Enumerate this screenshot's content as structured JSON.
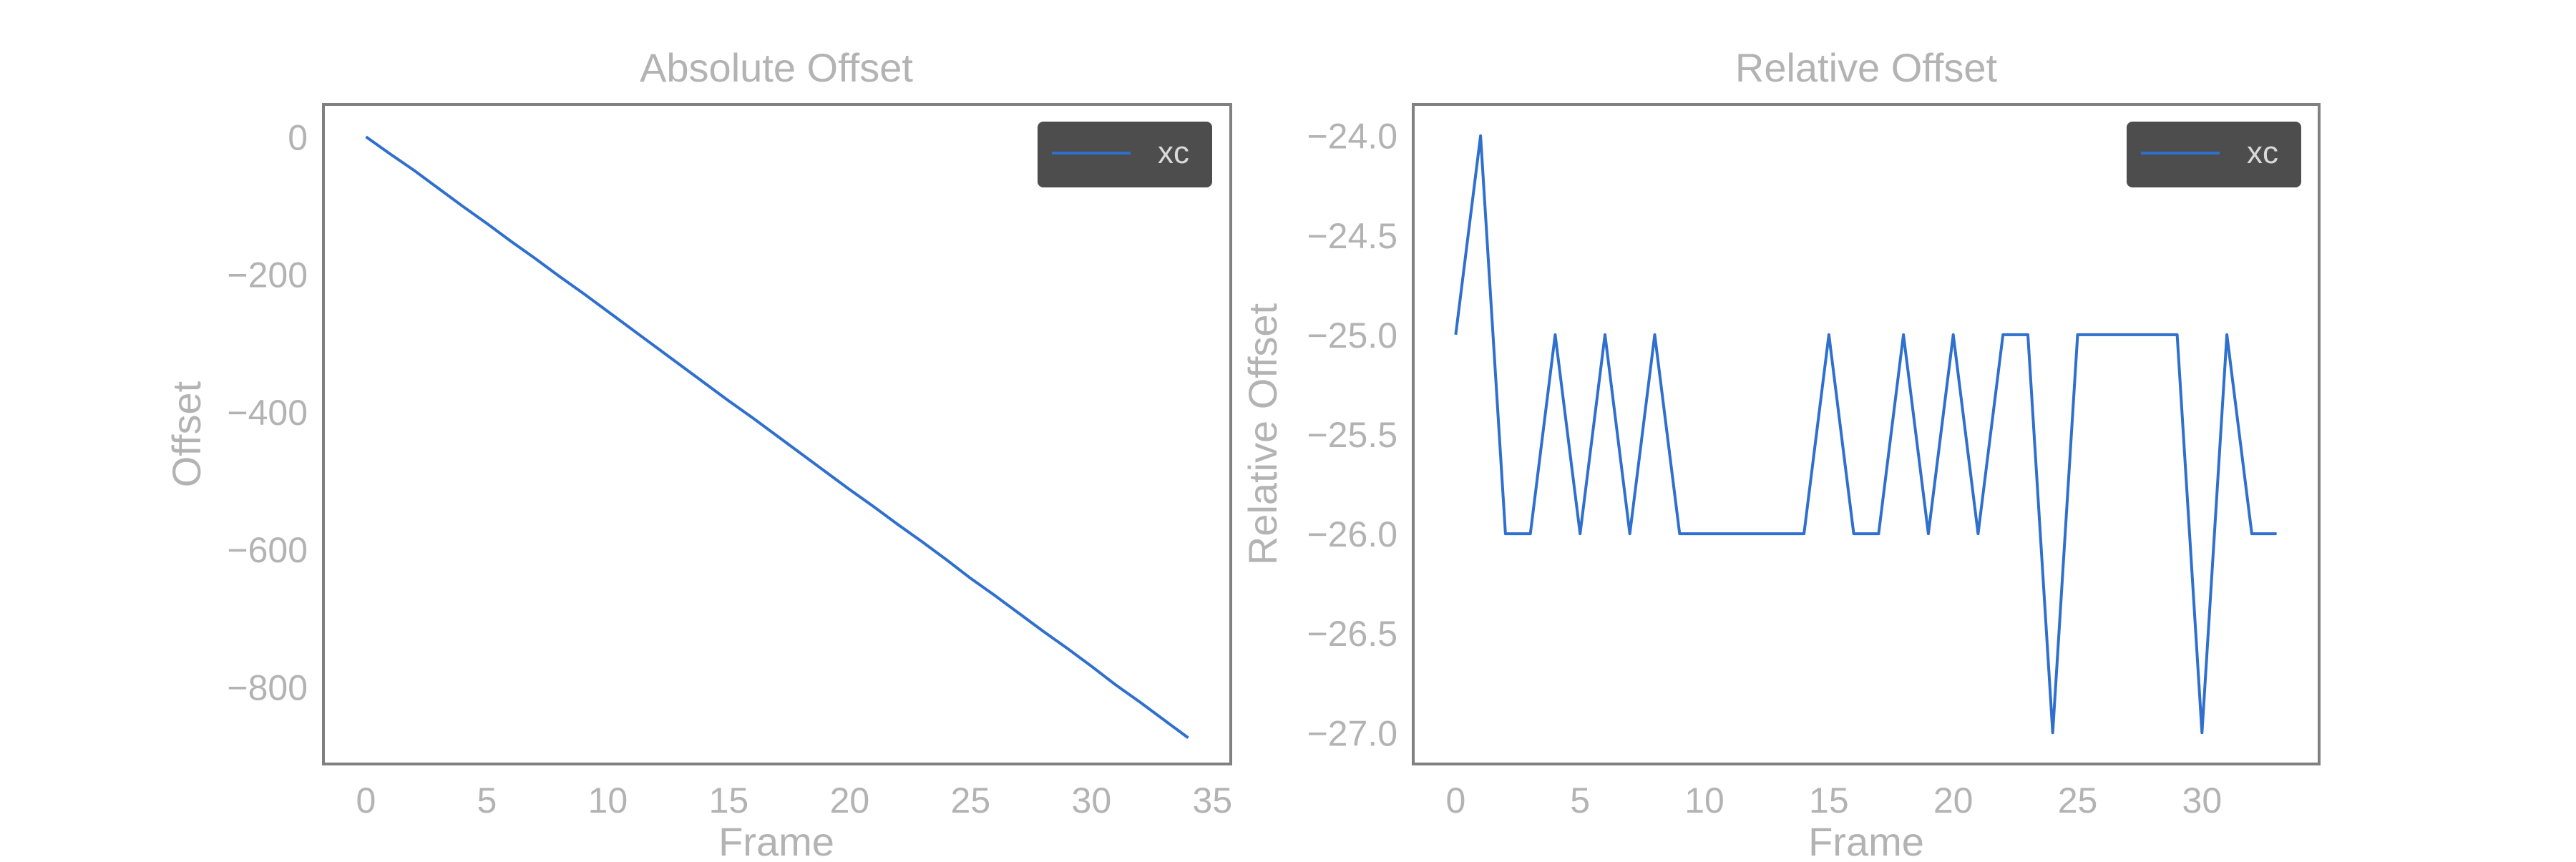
{
  "chart_data": [
    {
      "type": "line",
      "title": "Absolute Offset",
      "xlabel": "Frame",
      "ylabel": "Offset",
      "xlim": [
        -1.7,
        35.7
      ],
      "ylim": [
        -910,
        45
      ],
      "xticks": [
        0,
        5,
        10,
        15,
        20,
        25,
        30,
        35
      ],
      "yticks": [
        0,
        -200,
        -400,
        -600,
        -800
      ],
      "ytick_labels": [
        "0",
        "−200",
        "−400",
        "−600",
        "−800"
      ],
      "grid": false,
      "legend": "top-right",
      "series": [
        {
          "name": "xc",
          "color": "#2f6fce",
          "x": [
            0,
            1,
            2,
            3,
            4,
            5,
            6,
            7,
            8,
            9,
            10,
            11,
            12,
            13,
            14,
            15,
            16,
            17,
            18,
            19,
            20,
            21,
            22,
            23,
            24,
            25,
            26,
            27,
            28,
            29,
            30,
            31,
            32,
            33,
            34
          ],
          "y": [
            0,
            -25,
            -49,
            -75,
            -101,
            -126,
            -152,
            -177,
            -203,
            -228,
            -254,
            -280,
            -306,
            -332,
            -358,
            -384,
            -409,
            -435,
            -461,
            -487,
            -513,
            -538,
            -564,
            -589,
            -615,
            -642,
            -667,
            -693,
            -719,
            -744,
            -770,
            -797,
            -822,
            -848,
            -874
          ]
        }
      ]
    },
    {
      "type": "line",
      "title": "Relative Offset",
      "xlabel": "Frame",
      "ylabel": "Relative Offset",
      "xlim": [
        -1.65,
        34.65
      ],
      "ylim": [
        -27.15,
        -23.85
      ],
      "xticks": [
        0,
        5,
        10,
        15,
        20,
        25,
        30
      ],
      "yticks": [
        -24.0,
        -24.5,
        -25.0,
        -25.5,
        -26.0,
        -26.5,
        -27.0
      ],
      "ytick_labels": [
        "−24.0",
        "−24.5",
        "−25.0",
        "−25.5",
        "−26.0",
        "−26.5",
        "−27.0"
      ],
      "grid": false,
      "legend": "top-right",
      "series": [
        {
          "name": "xc",
          "color": "#2f6fce",
          "x": [
            0,
            1,
            2,
            3,
            4,
            5,
            6,
            7,
            8,
            9,
            10,
            11,
            12,
            13,
            14,
            15,
            16,
            17,
            18,
            19,
            20,
            21,
            22,
            23,
            24,
            25,
            26,
            27,
            28,
            29,
            30,
            31,
            32,
            33
          ],
          "y": [
            -25,
            -24,
            -26,
            -26,
            -25,
            -26,
            -25,
            -26,
            -25,
            -26,
            -26,
            -26,
            -26,
            -26,
            -26,
            -25,
            -26,
            -26,
            -25,
            -26,
            -25,
            -26,
            -25,
            -25,
            -27,
            -25,
            -25,
            -25,
            -25,
            -25,
            -27,
            -25,
            -26,
            -26
          ]
        }
      ]
    }
  ]
}
